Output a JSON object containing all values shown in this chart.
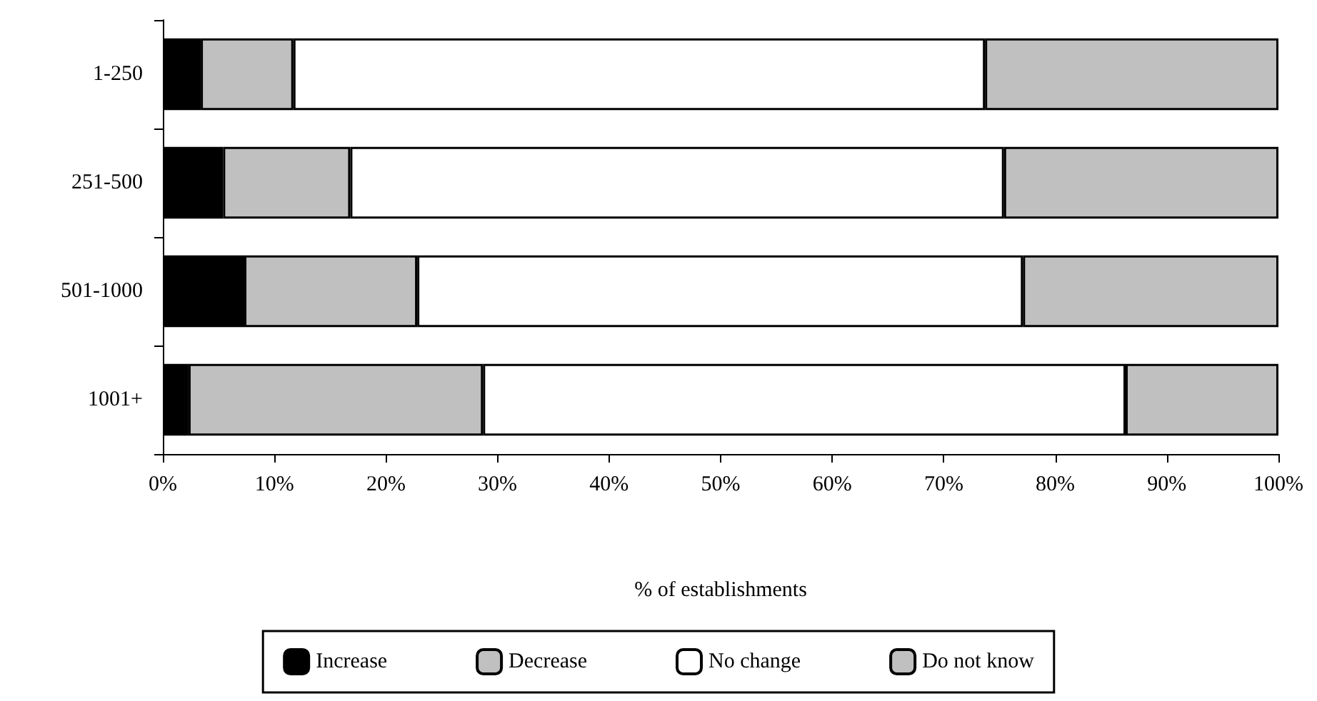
{
  "chart_data": {
    "type": "bar",
    "orientation": "horizontal",
    "stacked": true,
    "xlabel": "% of establishments",
    "categories": [
      "1-250",
      "251-500",
      "501-1000",
      "1001+"
    ],
    "series": [
      {
        "name": "Increase",
        "color": "#000000",
        "values": [
          3.4,
          5.4,
          7.3,
          2.3
        ]
      },
      {
        "name": "Decrease",
        "color": "#c0c0c0",
        "values": [
          8.3,
          11.4,
          15.5,
          26.4
        ]
      },
      {
        "name": "No change",
        "color": "#ffffff",
        "values": [
          62.0,
          58.6,
          54.3,
          57.6
        ]
      },
      {
        "name": "Do not know",
        "color": "#c0c0c0",
        "values": [
          26.3,
          24.6,
          22.9,
          13.7
        ]
      }
    ],
    "xlim": [
      0,
      100
    ],
    "xticks": [
      {
        "value": 0,
        "label": "0%"
      },
      {
        "value": 10,
        "label": "10%"
      },
      {
        "value": 20,
        "label": "20%"
      },
      {
        "value": 30,
        "label": "30%"
      },
      {
        "value": 40,
        "label": "40%"
      },
      {
        "value": 50,
        "label": "50%"
      },
      {
        "value": 60,
        "label": "60%"
      },
      {
        "value": 70,
        "label": "70%"
      },
      {
        "value": 80,
        "label": "80%"
      },
      {
        "value": 90,
        "label": "90%"
      },
      {
        "value": 100,
        "label": "100%"
      }
    ],
    "grid": false,
    "legend": "bottom"
  }
}
